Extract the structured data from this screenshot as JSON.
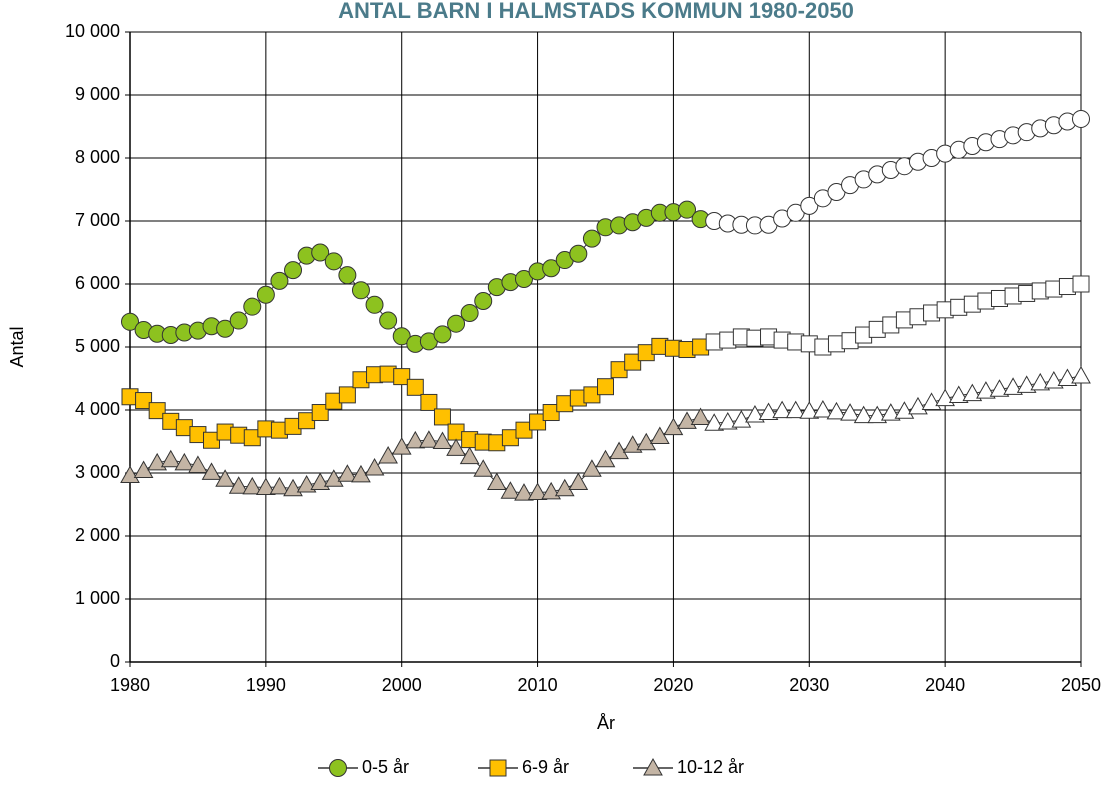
{
  "chart_data": {
    "type": "line",
    "title": "ANTAL BARN I HALMSTADS KOMMUN 1980-2050",
    "x_label": "År",
    "y_label": "Antal",
    "x": [
      1980,
      1981,
      1982,
      1983,
      1984,
      1985,
      1986,
      1987,
      1988,
      1989,
      1990,
      1991,
      1992,
      1993,
      1994,
      1995,
      1996,
      1997,
      1998,
      1999,
      2000,
      2001,
      2002,
      2003,
      2004,
      2005,
      2006,
      2007,
      2008,
      2009,
      2010,
      2011,
      2012,
      2013,
      2014,
      2015,
      2016,
      2017,
      2018,
      2019,
      2020,
      2021,
      2022,
      2023,
      2024,
      2025,
      2026,
      2027,
      2028,
      2029,
      2030,
      2031,
      2032,
      2033,
      2034,
      2035,
      2036,
      2037,
      2038,
      2039,
      2040,
      2041,
      2042,
      2043,
      2044,
      2045,
      2046,
      2047,
      2048,
      2049,
      2050
    ],
    "forecast_start": 2023,
    "forecast_color": "#ffffff",
    "series": [
      {
        "name": "0-5 år",
        "color": "#8dc21f",
        "marker": "circle",
        "values": [
          5400,
          5270,
          5210,
          5190,
          5230,
          5260,
          5330,
          5290,
          5420,
          5640,
          5830,
          6050,
          6220,
          6450,
          6500,
          6360,
          6140,
          5900,
          5670,
          5420,
          5170,
          5050,
          5090,
          5200,
          5370,
          5540,
          5730,
          5950,
          6030,
          6080,
          6200,
          6250,
          6380,
          6480,
          6720,
          6900,
          6930,
          6980,
          7050,
          7130,
          7140,
          7180,
          7030,
          7000,
          6960,
          6940,
          6930,
          6940,
          7040,
          7130,
          7240,
          7360,
          7460,
          7570,
          7660,
          7740,
          7810,
          7870,
          7940,
          8000,
          8070,
          8130,
          8190,
          8250,
          8300,
          8360,
          8410,
          8470,
          8520,
          8580,
          8620
        ]
      },
      {
        "name": "6-9 år",
        "color": "#ffc000",
        "marker": "square",
        "values": [
          4210,
          4150,
          3990,
          3820,
          3720,
          3610,
          3520,
          3650,
          3600,
          3560,
          3700,
          3680,
          3740,
          3830,
          3960,
          4140,
          4240,
          4480,
          4560,
          4570,
          4530,
          4360,
          4120,
          3890,
          3650,
          3530,
          3490,
          3480,
          3560,
          3680,
          3810,
          3960,
          4100,
          4190,
          4240,
          4370,
          4640,
          4760,
          4910,
          5010,
          4980,
          4960,
          5000,
          5080,
          5110,
          5160,
          5140,
          5160,
          5110,
          5080,
          5050,
          5000,
          5050,
          5100,
          5190,
          5280,
          5350,
          5430,
          5480,
          5540,
          5590,
          5630,
          5680,
          5730,
          5770,
          5810,
          5850,
          5890,
          5920,
          5960,
          6000
        ]
      },
      {
        "name": "10-12 år",
        "color": "#c4b5a5",
        "marker": "triangle",
        "values": [
          2960,
          3040,
          3160,
          3210,
          3160,
          3120,
          3010,
          2900,
          2790,
          2780,
          2770,
          2780,
          2750,
          2810,
          2850,
          2900,
          2980,
          2970,
          3080,
          3270,
          3410,
          3510,
          3520,
          3500,
          3390,
          3260,
          3060,
          2850,
          2710,
          2680,
          2690,
          2700,
          2750,
          2850,
          3060,
          3210,
          3340,
          3440,
          3480,
          3580,
          3720,
          3820,
          3880,
          3790,
          3810,
          3840,
          3920,
          3960,
          3990,
          3990,
          3980,
          4000,
          3970,
          3950,
          3910,
          3910,
          3950,
          3980,
          4050,
          4120,
          4180,
          4230,
          4260,
          4300,
          4330,
          4360,
          4390,
          4430,
          4460,
          4500,
          4540
        ]
      }
    ],
    "xlim": [
      1980,
      2050
    ],
    "xticks": [
      1980,
      1990,
      2000,
      2010,
      2020,
      2030,
      2040,
      2050
    ],
    "ylim": [
      0,
      10000
    ],
    "yticks": [
      0,
      {
        "value": 1000,
        "label": "1 000"
      },
      {
        "value": 2000,
        "label": "2 000"
      },
      {
        "value": 3000,
        "label": "3 000"
      },
      {
        "value": 4000,
        "label": "4 000"
      },
      {
        "value": 5000,
        "label": "5 000"
      },
      {
        "value": 6000,
        "label": "6 000"
      },
      {
        "value": 7000,
        "label": "7 000"
      },
      {
        "value": 8000,
        "label": "8 000"
      },
      {
        "value": 9000,
        "label": "9 000"
      },
      {
        "value": 10000,
        "label": "10 000"
      }
    ],
    "grid": true,
    "legend": "bottom"
  }
}
